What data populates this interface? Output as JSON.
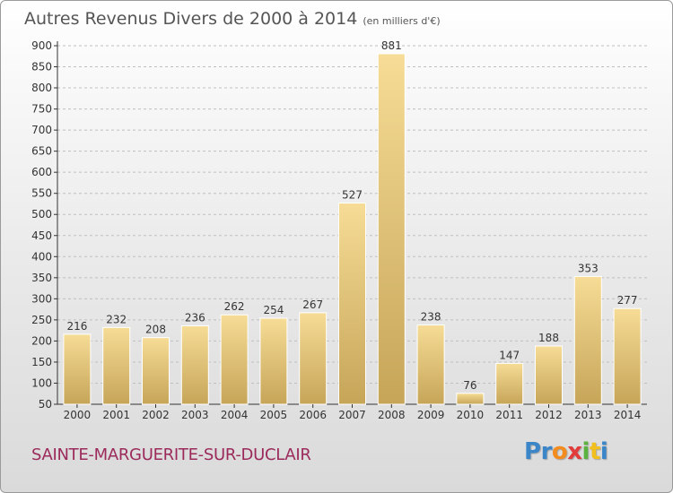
{
  "header": {
    "title": "Autres Revenus Divers de 2000 à 2014",
    "unit": "(en milliers d'€)"
  },
  "footer": {
    "commune": "SAINTE-MARGUERITE-SUR-DUCLAIR",
    "logo_letters": [
      "P",
      "r",
      "o",
      "x",
      "i",
      "t",
      "i"
    ]
  },
  "colors": {
    "bar_light": "#f6dc96",
    "bar_dark": "#c6a558",
    "axis": "#333333",
    "grid": "#bfbfbf",
    "commune": "#9b2a5b",
    "logo": [
      "#3a86c8",
      "#3a86c8",
      "#f28c1e",
      "#e23b3b",
      "#5ab33e",
      "#f2c01e",
      "#3a86c8"
    ]
  },
  "chart_data": {
    "type": "bar",
    "categories": [
      "2000",
      "2001",
      "2002",
      "2003",
      "2004",
      "2005",
      "2006",
      "2007",
      "2008",
      "2009",
      "2010",
      "2011",
      "2012",
      "2013",
      "2014"
    ],
    "values": [
      216,
      232,
      208,
      236,
      262,
      254,
      267,
      527,
      881,
      238,
      76,
      147,
      188,
      353,
      277
    ],
    "title": "Autres Revenus Divers de 2000 à 2014",
    "xlabel": "",
    "ylabel": "",
    "ylim": [
      50,
      900
    ],
    "yticks": [
      50,
      100,
      150,
      200,
      250,
      300,
      350,
      400,
      450,
      500,
      550,
      600,
      650,
      700,
      750,
      800,
      850,
      900
    ],
    "grid": "horizontal-dashed",
    "data_labels": true
  }
}
